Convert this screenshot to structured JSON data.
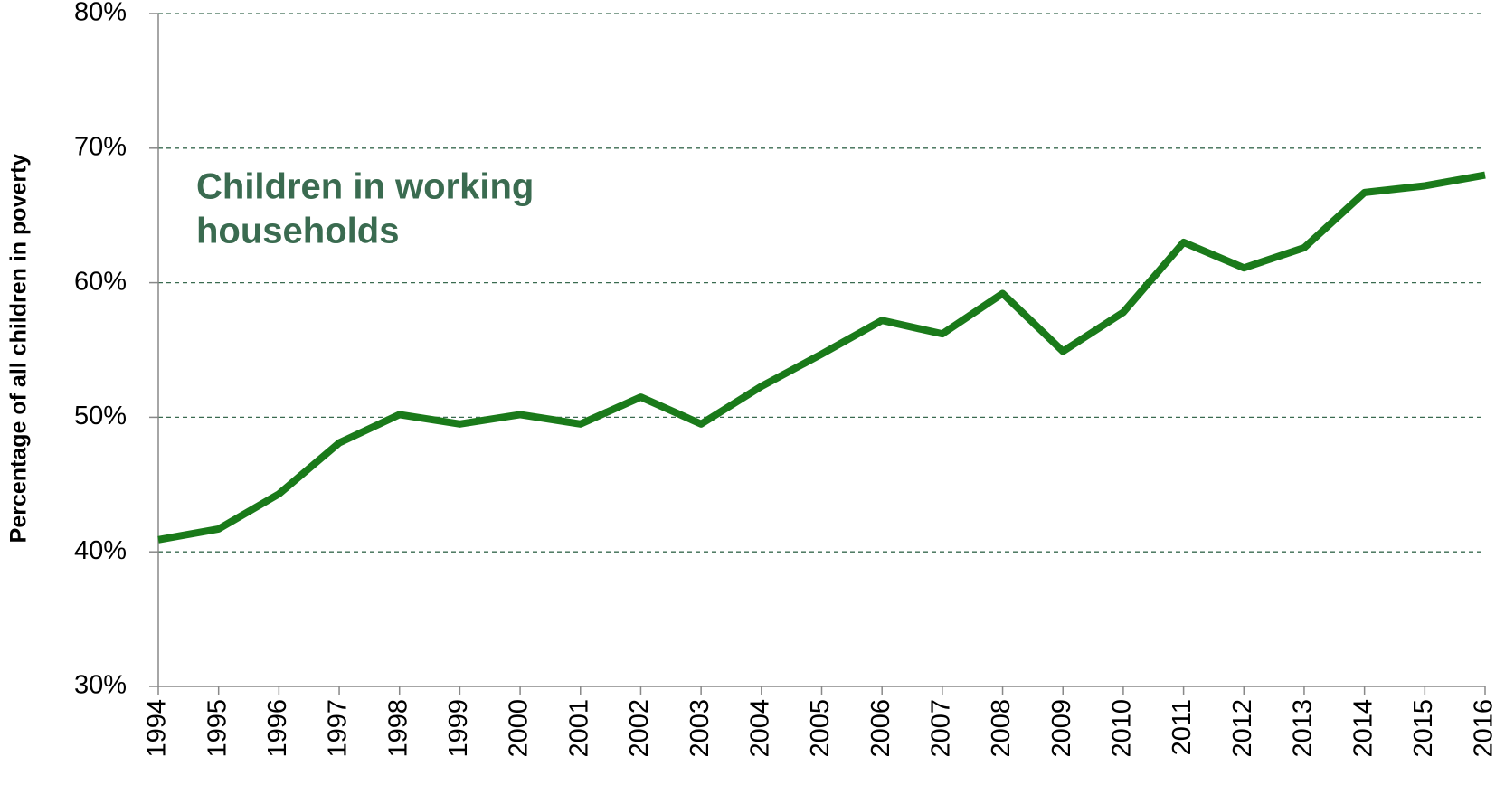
{
  "chart_data": {
    "type": "line",
    "y_label": "Percentage of all children in poverty",
    "annotation": [
      "Children in working",
      "households"
    ],
    "categories": [
      "1994",
      "1995",
      "1996",
      "1997",
      "1998",
      "1999",
      "2000",
      "2001",
      "2002",
      "2003",
      "2004",
      "2005",
      "2006",
      "2007",
      "2008",
      "2009",
      "2010",
      "2011",
      "2012",
      "2013",
      "2014",
      "2015",
      "2016"
    ],
    "series": [
      {
        "name": "Children in working households",
        "color": "#1a7a1a",
        "values": [
          40.9,
          41.7,
          44.3,
          48.1,
          50.2,
          49.5,
          50.2,
          49.5,
          51.5,
          49.5,
          52.3,
          54.7,
          57.2,
          56.2,
          59.2,
          54.9,
          57.8,
          63.0,
          61.1,
          62.6,
          66.7,
          67.2,
          68.0
        ]
      }
    ],
    "ylim": [
      30,
      80
    ],
    "yticks": [
      {
        "value": 30,
        "label": "30%"
      },
      {
        "value": 40,
        "label": "40%"
      },
      {
        "value": 50,
        "label": "50%"
      },
      {
        "value": 60,
        "label": "60%"
      },
      {
        "value": 70,
        "label": "70%"
      },
      {
        "value": 80,
        "label": "80%"
      }
    ],
    "grid": true
  }
}
